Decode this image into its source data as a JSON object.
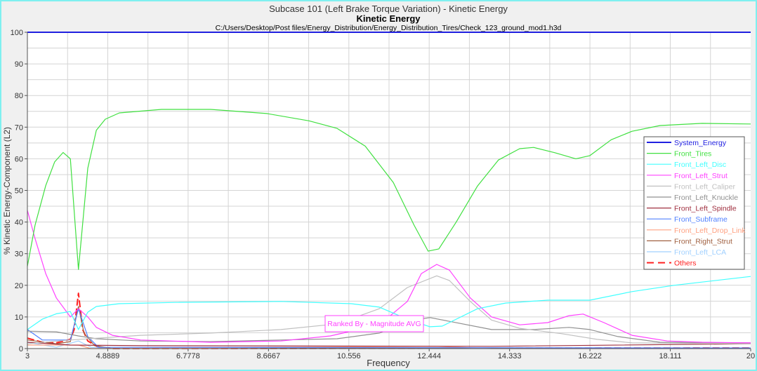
{
  "chart_data": {
    "type": "line",
    "title": "Subcase 101 (Left Brake Torque Variation) - Kinetic Energy",
    "subtitle": "Kinetic Energy",
    "file_path": "C:/Users/Desktop/Post files/Energy_Distribution/Energy_Distribution_Tires/Check_123_ground_mod1.h3d",
    "xlabel": "Frequency",
    "ylabel": "% Kinetic Energy-Component (L2)",
    "xlim": [
      3,
      20
    ],
    "ylim": [
      0,
      100
    ],
    "xticks": [
      "3",
      "4.8889",
      "6.7778",
      "8.6667",
      "10.556",
      "12.444",
      "14.333",
      "16.222",
      "18.111",
      "20"
    ],
    "xtick_values": [
      3,
      4.8889,
      6.7778,
      8.6667,
      10.556,
      12.444,
      14.333,
      16.222,
      18.111,
      20
    ],
    "yticks": [
      0,
      10,
      20,
      30,
      40,
      50,
      60,
      70,
      80,
      90,
      100
    ],
    "grid": true,
    "legend_position": "right",
    "annotation": "Ranked By - Magnitude AVG",
    "series": [
      {
        "name": "System_Energy",
        "color": "#2020e0",
        "dashed": false,
        "points": [
          [
            3,
            100
          ],
          [
            20,
            100
          ]
        ]
      },
      {
        "name": "Front_Tires",
        "color": "#40e040",
        "dashed": false,
        "points": [
          [
            3,
            26
          ],
          [
            3.18,
            39
          ],
          [
            3.43,
            51.5
          ],
          [
            3.64,
            59
          ],
          [
            3.84,
            62
          ],
          [
            4.01,
            60
          ],
          [
            4.2,
            25
          ],
          [
            4.42,
            57
          ],
          [
            4.62,
            69
          ],
          [
            4.83,
            72.5
          ],
          [
            5.16,
            74.5
          ],
          [
            6.15,
            75.6
          ],
          [
            7.31,
            75.6
          ],
          [
            8.63,
            74.3
          ],
          [
            9.62,
            72
          ],
          [
            10.28,
            69.6
          ],
          [
            10.94,
            64
          ],
          [
            11.6,
            52.5
          ],
          [
            12.09,
            39
          ],
          [
            12.42,
            30.8
          ],
          [
            12.67,
            31.5
          ],
          [
            13.08,
            40
          ],
          [
            13.58,
            51.4
          ],
          [
            14.07,
            59.6
          ],
          [
            14.57,
            63.2
          ],
          [
            14.9,
            63.6
          ],
          [
            15.4,
            61.9
          ],
          [
            15.89,
            60
          ],
          [
            16.22,
            61
          ],
          [
            16.72,
            66
          ],
          [
            17.21,
            68.7
          ],
          [
            17.87,
            70.5
          ],
          [
            18.86,
            71.2
          ],
          [
            20,
            71
          ]
        ]
      },
      {
        "name": "Front_Left_Disc",
        "color": "#40ffff",
        "dashed": false,
        "points": [
          [
            3,
            6
          ],
          [
            3.35,
            9.3
          ],
          [
            3.68,
            11
          ],
          [
            4.01,
            11.7
          ],
          [
            4.2,
            6
          ],
          [
            4.42,
            11.5
          ],
          [
            4.62,
            13.3
          ],
          [
            5.16,
            14.2
          ],
          [
            6.48,
            14.6
          ],
          [
            8.96,
            14.9
          ],
          [
            10.61,
            14.2
          ],
          [
            11.27,
            13.1
          ],
          [
            11.93,
            9.3
          ],
          [
            12.46,
            6.9
          ],
          [
            12.75,
            7.1
          ],
          [
            13.58,
            12.6
          ],
          [
            14.24,
            14.4
          ],
          [
            15.23,
            15.3
          ],
          [
            16.22,
            15.3
          ],
          [
            17.21,
            18
          ],
          [
            18.2,
            20
          ],
          [
            20,
            22.8
          ]
        ]
      },
      {
        "name": "Front_Left_Strut",
        "color": "#ff40ff",
        "dashed": false,
        "points": [
          [
            3,
            43.7
          ],
          [
            3.18,
            34.8
          ],
          [
            3.43,
            23.7
          ],
          [
            3.68,
            16
          ],
          [
            4.01,
            10
          ],
          [
            4.2,
            12.6
          ],
          [
            4.42,
            10
          ],
          [
            4.62,
            6.7
          ],
          [
            5,
            4.2
          ],
          [
            5.66,
            2.7
          ],
          [
            7.31,
            2
          ],
          [
            8.96,
            2.4
          ],
          [
            10.12,
            4
          ],
          [
            11.27,
            7.5
          ],
          [
            11.93,
            14.9
          ],
          [
            12.26,
            23.7
          ],
          [
            12.62,
            26.6
          ],
          [
            12.92,
            24.8
          ],
          [
            13.41,
            16
          ],
          [
            13.91,
            10
          ],
          [
            14.57,
            7.5
          ],
          [
            15.23,
            8.2
          ],
          [
            15.73,
            10.4
          ],
          [
            16.06,
            10.9
          ],
          [
            16.55,
            8.2
          ],
          [
            17.21,
            4.2
          ],
          [
            18.04,
            2.4
          ],
          [
            18.86,
            2
          ],
          [
            20,
            1.8
          ]
        ]
      },
      {
        "name": "Front_Left_Caliper",
        "color": "#c0c0c0",
        "dashed": false,
        "points": [
          [
            3,
            1.5
          ],
          [
            4.01,
            2.7
          ],
          [
            5.66,
            4.2
          ],
          [
            7.31,
            4.9
          ],
          [
            8.96,
            6
          ],
          [
            10.28,
            7.8
          ],
          [
            11.27,
            12.6
          ],
          [
            11.93,
            19.3
          ],
          [
            12.62,
            23
          ],
          [
            12.92,
            21.5
          ],
          [
            13.41,
            14.9
          ],
          [
            13.91,
            9
          ],
          [
            14.57,
            6.4
          ],
          [
            15.56,
            4.7
          ],
          [
            16.39,
            2.9
          ],
          [
            17.21,
            1.8
          ],
          [
            20,
            1.5
          ]
        ]
      },
      {
        "name": "Front_Left_Knuckle",
        "color": "#909090",
        "dashed": false,
        "points": [
          [
            3,
            5.5
          ],
          [
            3.68,
            5.3
          ],
          [
            4.2,
            4
          ],
          [
            4.62,
            3.1
          ],
          [
            5.66,
            2.4
          ],
          [
            7.31,
            2.2
          ],
          [
            8.96,
            2.7
          ],
          [
            10.28,
            3.1
          ],
          [
            11.27,
            4.9
          ],
          [
            12.09,
            9
          ],
          [
            12.46,
            9.8
          ],
          [
            12.92,
            8.6
          ],
          [
            13.91,
            6
          ],
          [
            14.9,
            6
          ],
          [
            15.73,
            6.7
          ],
          [
            16.22,
            6
          ],
          [
            16.88,
            3.8
          ],
          [
            17.87,
            2
          ],
          [
            20,
            1.8
          ]
        ]
      },
      {
        "name": "Front_Left_Spindle",
        "color": "#a03040",
        "dashed": false,
        "points": [
          [
            3,
            2
          ],
          [
            4.01,
            1.1
          ],
          [
            5.66,
            0.9
          ],
          [
            13.91,
            0.7
          ],
          [
            20,
            1.5
          ]
        ]
      },
      {
        "name": "Front_Subframe",
        "color": "#5080ff",
        "dashed": false,
        "points": [
          [
            3,
            6
          ],
          [
            3.35,
            2.7
          ],
          [
            4.01,
            2.7
          ],
          [
            4.2,
            12.6
          ],
          [
            4.42,
            3.8
          ],
          [
            4.67,
            0.4
          ],
          [
            20,
            0.2
          ]
        ]
      },
      {
        "name": "Front_Left_Drop_Link",
        "color": "#ffa080",
        "dashed": false,
        "points": [
          [
            3,
            1.1
          ],
          [
            4.2,
            1.1
          ],
          [
            4.5,
            0
          ],
          [
            12.59,
            0.7
          ],
          [
            13.91,
            0
          ],
          [
            20,
            0
          ]
        ]
      },
      {
        "name": "Front_Right_Strut",
        "color": "#a06040",
        "dashed": false,
        "points": [
          [
            3,
            2.7
          ],
          [
            3.68,
            1.5
          ],
          [
            4.01,
            2.2
          ],
          [
            4.2,
            13.3
          ],
          [
            4.33,
            4.9
          ],
          [
            4.58,
            0.9
          ],
          [
            5,
            0
          ],
          [
            20,
            0.2
          ]
        ]
      },
      {
        "name": "Front_Left_LCA",
        "color": "#a0d0ff",
        "dashed": false,
        "points": [
          [
            3,
            2
          ],
          [
            3.68,
            0.4
          ],
          [
            4.2,
            2.4
          ],
          [
            4.5,
            0.4
          ],
          [
            5,
            0
          ],
          [
            20,
            0
          ]
        ]
      },
      {
        "name": "Others",
        "color": "#ff2020",
        "dashed": true,
        "points": [
          [
            3,
            3.3
          ],
          [
            3.35,
            2
          ],
          [
            3.68,
            1.8
          ],
          [
            4.01,
            2.9
          ],
          [
            4.1,
            6
          ],
          [
            4.2,
            17.5
          ],
          [
            4.3,
            6
          ],
          [
            4.42,
            2.4
          ],
          [
            4.67,
            0.4
          ],
          [
            5,
            0
          ],
          [
            20,
            0.2
          ]
        ]
      }
    ]
  }
}
